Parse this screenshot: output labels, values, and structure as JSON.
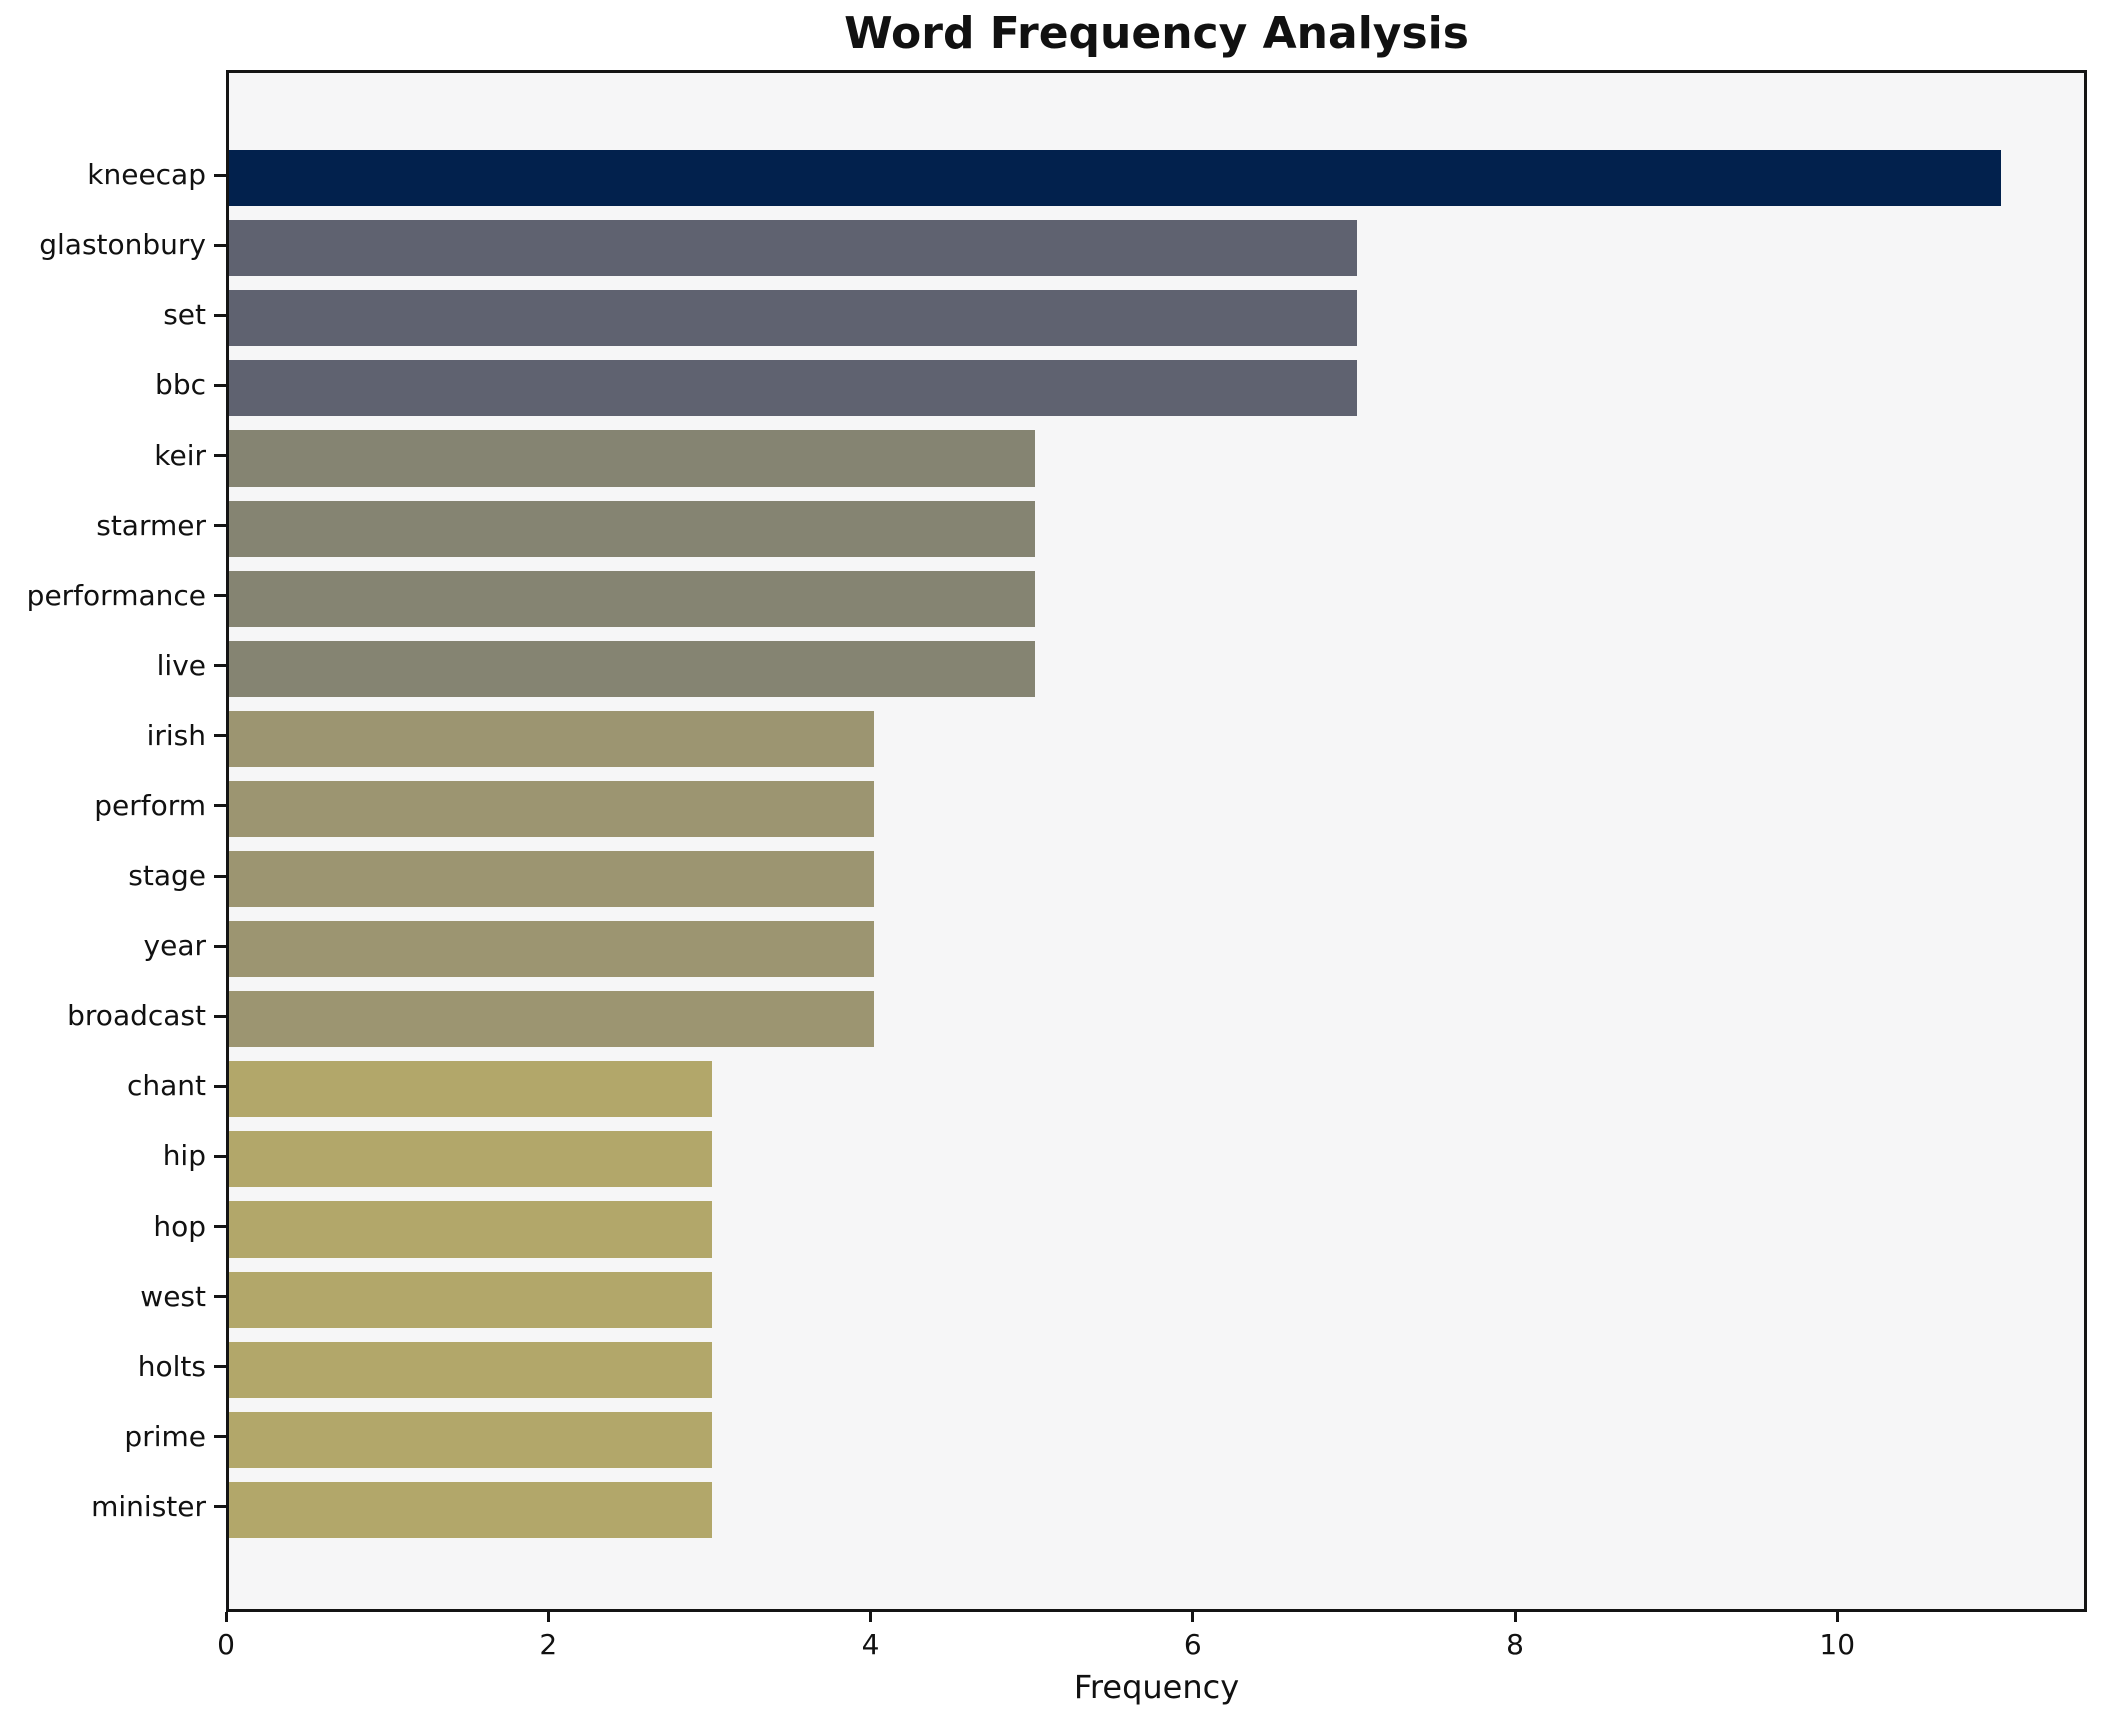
{
  "chart_data": {
    "type": "bar",
    "orientation": "horizontal",
    "title": "Word Frequency Analysis",
    "xlabel": "Frequency",
    "ylabel": "",
    "categories": [
      "kneecap",
      "glastonbury",
      "set",
      "bbc",
      "keir",
      "starmer",
      "performance",
      "live",
      "irish",
      "perform",
      "stage",
      "year",
      "broadcast",
      "chant",
      "hip",
      "hop",
      "west",
      "holts",
      "prime",
      "minister"
    ],
    "values": [
      11,
      7,
      7,
      7,
      5,
      5,
      5,
      5,
      4,
      4,
      4,
      4,
      4,
      3,
      3,
      3,
      3,
      3,
      3,
      3
    ],
    "bar_colors": [
      "#02214d",
      "#5f6270",
      "#5f6270",
      "#5f6270",
      "#858472",
      "#858472",
      "#858472",
      "#858472",
      "#9c9571",
      "#9c9571",
      "#9c9571",
      "#9c9571",
      "#9c9571",
      "#b2a76a",
      "#b2a76a",
      "#b2a76a",
      "#b2a76a",
      "#b2a76a",
      "#b2a76a",
      "#b2a76a"
    ],
    "xlim": [
      0,
      11.55
    ],
    "xticks": [
      0,
      2,
      4,
      6,
      8,
      10
    ],
    "grid": false,
    "legend": null,
    "plot_background": "#f6f6f7",
    "figure_background": "#ffffff",
    "spine_color": "#141414",
    "text_color": "#111111"
  }
}
